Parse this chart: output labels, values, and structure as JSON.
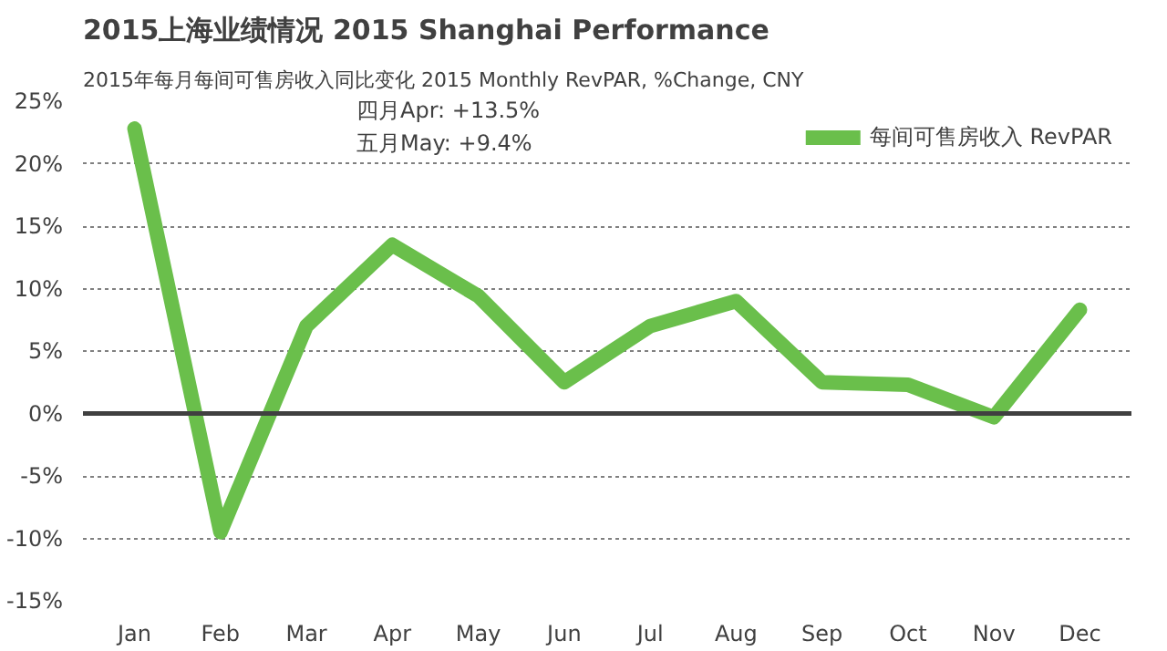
{
  "chart_data": {
    "type": "line",
    "title": "2015上海业绩情况 2015 Shanghai Performance",
    "subtitle": "2015年每月每间可售房收入同比变化 2015 Monthly RevPAR, %Change, CNY",
    "categories": [
      "Jan",
      "Feb",
      "Mar",
      "Apr",
      "May",
      "Jun",
      "Jul",
      "Aug",
      "Sep",
      "Oct",
      "Nov",
      "Dec"
    ],
    "series": [
      {
        "name": "每间可售房收入 RevPAR",
        "color": "#6abf4b",
        "values": [
          22.8,
          -9.5,
          7.0,
          13.5,
          9.4,
          2.5,
          7.0,
          9.0,
          2.5,
          2.3,
          -0.3,
          8.3
        ]
      }
    ],
    "ylim": [
      -15,
      25
    ],
    "yticks": [
      {
        "value": -15,
        "label": "-15%"
      },
      {
        "value": -10,
        "label": "-10%"
      },
      {
        "value": -5,
        "label": "-5%"
      },
      {
        "value": 0,
        "label": "0%"
      },
      {
        "value": 5,
        "label": "5%"
      },
      {
        "value": 10,
        "label": "10%"
      },
      {
        "value": 15,
        "label": "15%"
      },
      {
        "value": 20,
        "label": "20%"
      },
      {
        "value": 25,
        "label": "25%"
      }
    ],
    "annotations": [
      "四月Apr: +13.5%",
      "五月May: +9.4%"
    ],
    "ref_lines": [
      {
        "axis": "y",
        "value": 0,
        "color": "#404040",
        "line_style": "solid"
      }
    ],
    "grid": "y",
    "legend": "top right",
    "marker": "none",
    "line_style": "solid"
  }
}
